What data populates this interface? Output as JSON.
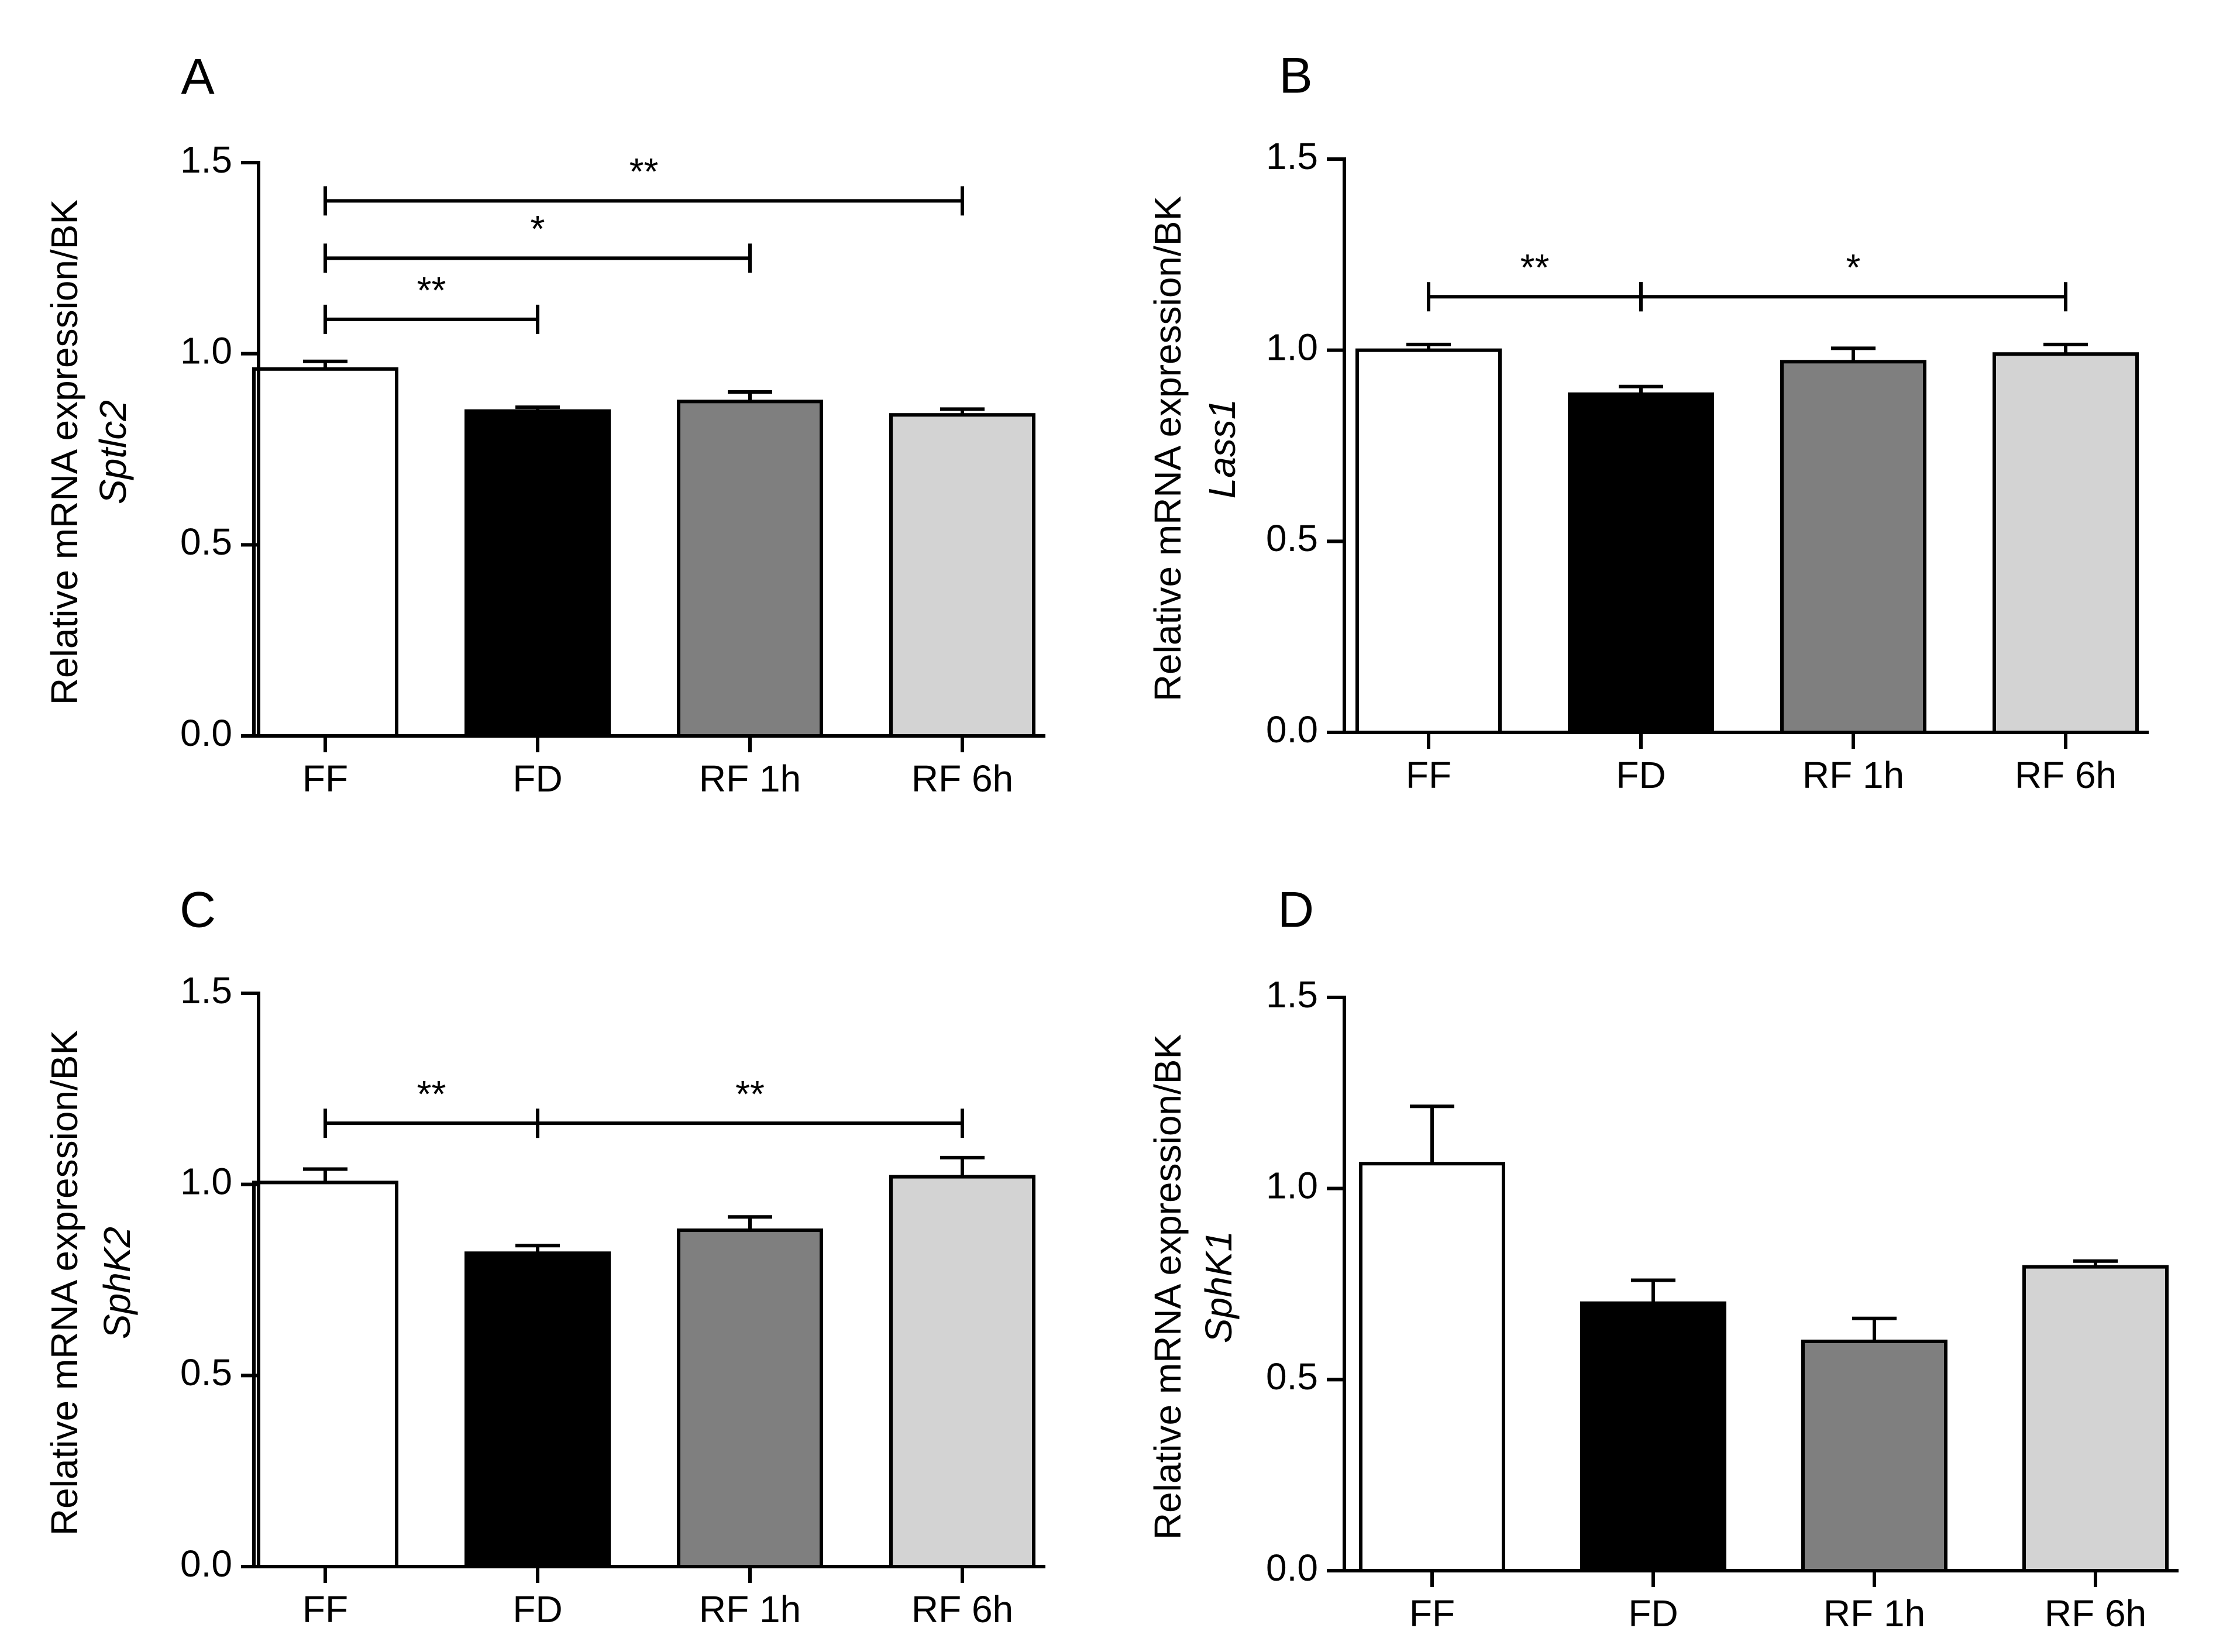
{
  "figure": {
    "background": "#ffffff"
  },
  "chart_data": [
    {
      "type": "bar",
      "panel_label": "A",
      "gene": "Sptlc2",
      "ylabel": "Relative mRNA expression/BK",
      "categories": [
        "FF",
        "FD",
        "RF 1h",
        "RF 6h"
      ],
      "values": [
        0.96,
        0.85,
        0.875,
        0.84
      ],
      "errors": [
        0.02,
        0.01,
        0.025,
        0.015
      ],
      "ylim": [
        0,
        1.5
      ],
      "yticks": [
        "0.0",
        "0.5",
        "1.0",
        "1.5"
      ],
      "yticks_values": [
        0,
        0.5,
        1.0,
        1.5
      ],
      "colors": [
        "#ffffff",
        "#000000",
        "#7f7f7f",
        "#d3d3d3"
      ],
      "significance": [
        {
          "from": 0,
          "to": 1,
          "y": 1.09,
          "label": "**"
        },
        {
          "from": 0,
          "to": 2,
          "y": 1.25,
          "label": "*"
        },
        {
          "from": 0,
          "to": 3,
          "y": 1.4,
          "label": "**"
        }
      ]
    },
    {
      "type": "bar",
      "panel_label": "B",
      "gene": "Lass1",
      "ylabel": "Relative mRNA expression/BK",
      "categories": [
        "FF",
        "FD",
        "RF 1h",
        "RF 6h"
      ],
      "values": [
        1.0,
        0.885,
        0.97,
        0.99
      ],
      "errors": [
        0.015,
        0.02,
        0.035,
        0.025
      ],
      "ylim": [
        0,
        1.5
      ],
      "yticks": [
        "0.0",
        "0.5",
        "1.0",
        "1.5"
      ],
      "yticks_values": [
        0,
        0.5,
        1.0,
        1.5
      ],
      "colors": [
        "#ffffff",
        "#000000",
        "#7f7f7f",
        "#d3d3d3"
      ],
      "significance": [
        {
          "from": 0,
          "to": 1,
          "y": 1.14,
          "label": "**"
        },
        {
          "from": 1,
          "to": 3,
          "y": 1.14,
          "label": "*"
        }
      ]
    },
    {
      "type": "bar",
      "panel_label": "C",
      "gene": "SphK2",
      "ylabel": "Relative mRNA expression/BK",
      "categories": [
        "FF",
        "FD",
        "RF 1h",
        "RF 6h"
      ],
      "values": [
        1.005,
        0.82,
        0.88,
        1.02
      ],
      "errors": [
        0.035,
        0.02,
        0.035,
        0.05
      ],
      "ylim": [
        0,
        1.5
      ],
      "yticks": [
        "0.0",
        "0.5",
        "1.0",
        "1.5"
      ],
      "yticks_values": [
        0,
        0.5,
        1.0,
        1.5
      ],
      "colors": [
        "#ffffff",
        "#000000",
        "#7f7f7f",
        "#d3d3d3"
      ],
      "significance": [
        {
          "from": 0,
          "to": 1,
          "y": 1.16,
          "label": "**"
        },
        {
          "from": 1,
          "to": 3,
          "y": 1.16,
          "label": "**"
        }
      ]
    },
    {
      "type": "bar",
      "panel_label": "D",
      "gene": "SphK1",
      "ylabel": "Relative mRNA expression/BK",
      "categories": [
        "FF",
        "FD",
        "RF 1h",
        "RF 6h"
      ],
      "values": [
        1.065,
        0.7,
        0.6,
        0.795
      ],
      "errors": [
        0.15,
        0.06,
        0.06,
        0.015
      ],
      "ylim": [
        0,
        1.5
      ],
      "yticks": [
        "0.0",
        "0.5",
        "1.0",
        "1.5"
      ],
      "yticks_values": [
        0,
        0.5,
        1.0,
        1.5
      ],
      "colors": [
        "#ffffff",
        "#000000",
        "#7f7f7f",
        "#d3d3d3"
      ],
      "significance": []
    }
  ]
}
